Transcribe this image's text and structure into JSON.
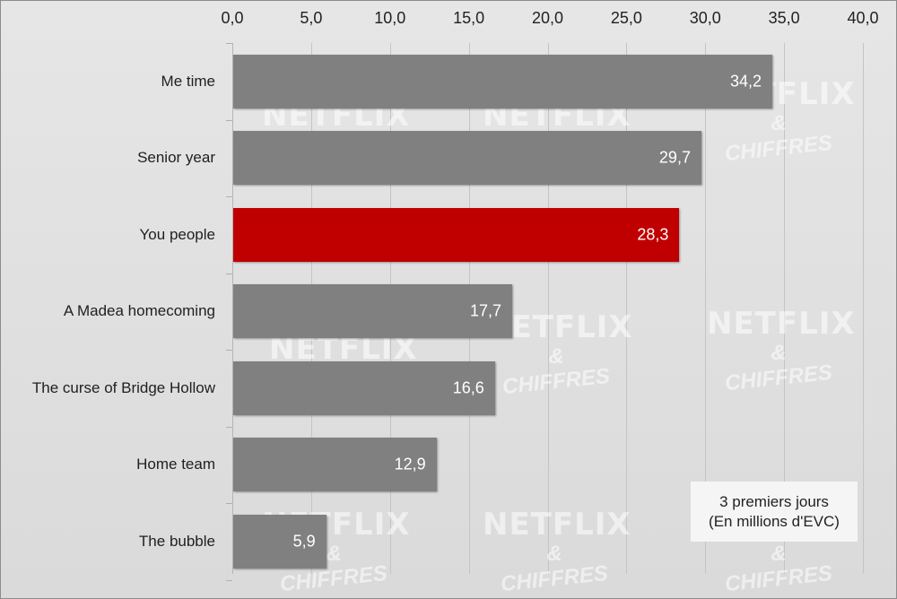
{
  "chart_data": {
    "type": "bar",
    "orientation": "horizontal",
    "title": "",
    "xlabel": "",
    "ylabel": "",
    "xlim": [
      0,
      40
    ],
    "x_ticks": [
      "0,0",
      "5,0",
      "10,0",
      "15,0",
      "20,0",
      "25,0",
      "30,0",
      "35,0",
      "40,0"
    ],
    "x_axis_position": "top",
    "grid": true,
    "categories": [
      "Me time",
      "Senior year",
      "You people",
      "A Madea homecoming",
      "The curse of Bridge Hollow",
      "Home team",
      "The bubble"
    ],
    "values": [
      34.2,
      29.7,
      28.3,
      17.7,
      16.6,
      12.9,
      5.9
    ],
    "value_labels": [
      "34,2",
      "29,7",
      "28,3",
      "17,7",
      "16,6",
      "12,9",
      "5,9"
    ],
    "bar_colors": [
      "#808080",
      "#808080",
      "#c00000",
      "#808080",
      "#808080",
      "#808080",
      "#808080"
    ],
    "highlight": "You people",
    "annotation": {
      "line1": "3 premiers jours",
      "line2": "(En millions d'EVC)"
    },
    "watermark": {
      "title": "NETFLIX",
      "amp": "&",
      "sub": "CHIFFRES"
    }
  },
  "colors": {
    "bar_default": "#808080",
    "bar_highlight": "#c00000",
    "background": "#e1e1e1",
    "gridline": "#c4c4c4"
  }
}
